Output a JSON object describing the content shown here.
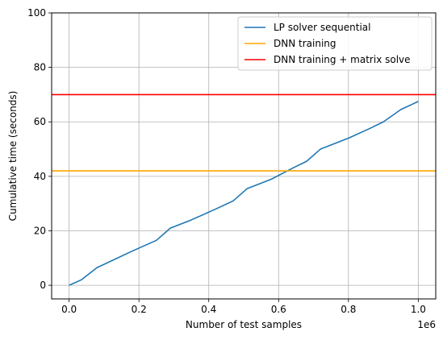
{
  "chart_data": {
    "type": "line",
    "xlabel": "Number of test samples",
    "ylabel": "Cumulative time (seconds)",
    "x_offset_label": "1e6",
    "xlim": [
      -0.05,
      1.05
    ],
    "ylim": [
      -5,
      100
    ],
    "x_ticks": [
      0.0,
      0.2,
      0.4,
      0.6,
      0.8,
      1.0
    ],
    "x_tick_labels": [
      "0.0",
      "0.2",
      "0.4",
      "0.6",
      "0.8",
      "1.0"
    ],
    "y_ticks": [
      0,
      20,
      40,
      60,
      80,
      100
    ],
    "y_tick_labels": [
      "0",
      "20",
      "40",
      "60",
      "80",
      "100"
    ],
    "grid": true,
    "legend_position": "top-right",
    "series": [
      {
        "name": "LP solver sequential",
        "kind": "line",
        "color": "#1f77b4",
        "x": [
          0.0,
          0.035,
          0.08,
          0.13,
          0.18,
          0.25,
          0.29,
          0.35,
          0.42,
          0.47,
          0.51,
          0.58,
          0.64,
          0.68,
          0.72,
          0.8,
          0.86,
          0.9,
          0.95,
          1.0
        ],
        "y": [
          0.0,
          2.0,
          6.5,
          9.5,
          12.5,
          16.5,
          21.0,
          24.0,
          28.0,
          31.0,
          35.5,
          39.0,
          43.0,
          45.5,
          50.0,
          54.0,
          57.5,
          60.0,
          64.5,
          67.5
        ]
      },
      {
        "name": "DNN training",
        "kind": "hline",
        "color": "#ffa500",
        "y": 42.0
      },
      {
        "name": "DNN training + matrix solve",
        "kind": "hline",
        "color": "#ff0000",
        "y": 70.0
      }
    ]
  }
}
